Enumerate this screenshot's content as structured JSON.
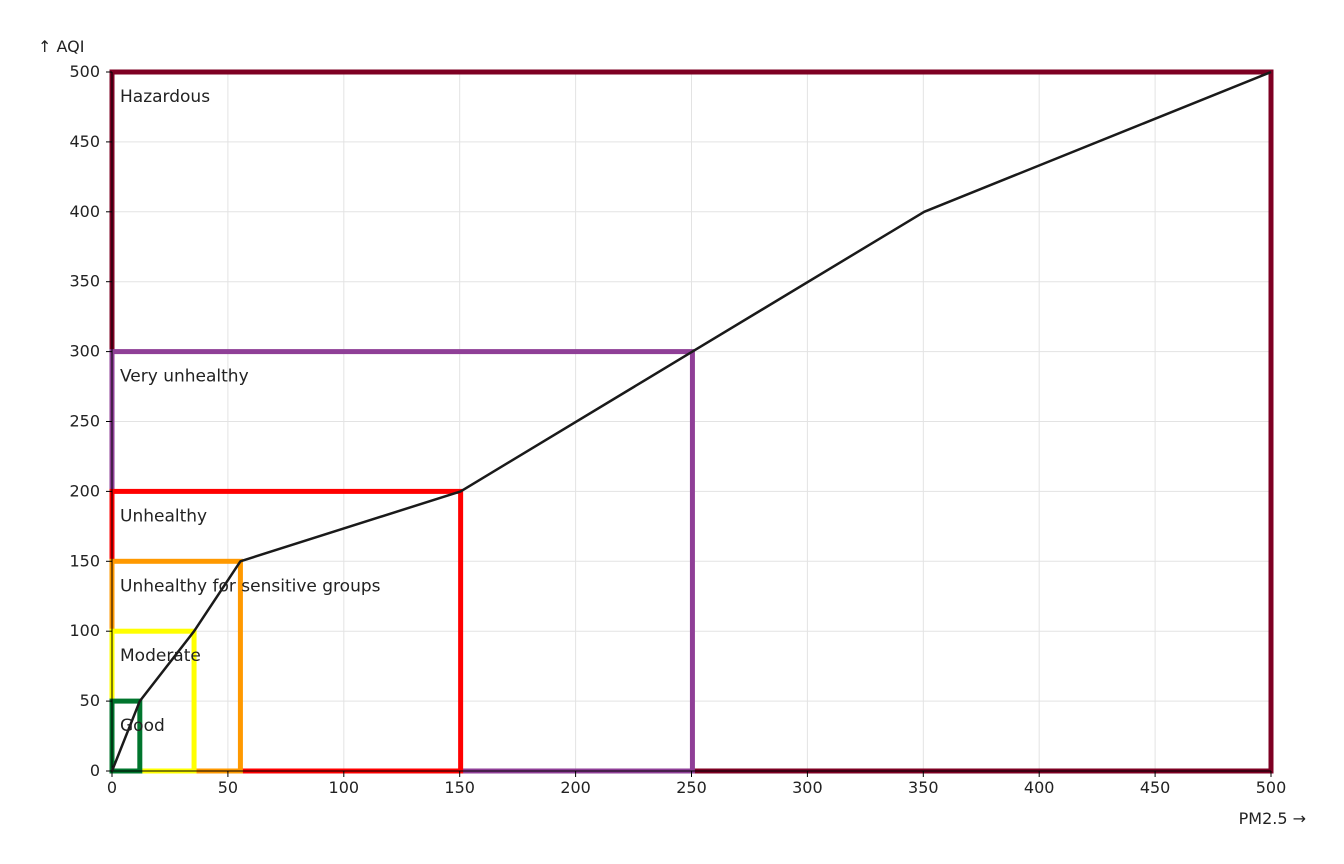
{
  "chart_data": {
    "type": "line",
    "title": "",
    "xlabel": "PM2.5 →",
    "ylabel": "↑ AQI",
    "xlim": [
      0,
      500
    ],
    "ylim": [
      0,
      500
    ],
    "x_ticks": [
      0,
      50,
      100,
      150,
      200,
      250,
      300,
      350,
      400,
      450,
      500
    ],
    "y_ticks": [
      0,
      50,
      100,
      150,
      200,
      250,
      300,
      350,
      400,
      450,
      500
    ],
    "grid": true,
    "categories": [
      {
        "name": "Hazardous",
        "pm_max": 500,
        "aqi_max": 500,
        "color": "#7e0023"
      },
      {
        "name": "Very unhealthy",
        "pm_max": 250.4,
        "aqi_max": 300,
        "color": "#8f3f97"
      },
      {
        "name": "Unhealthy",
        "pm_max": 150.4,
        "aqi_max": 200,
        "color": "#ff0000"
      },
      {
        "name": "Unhealthy for sensitive groups",
        "pm_max": 55.4,
        "aqi_max": 150,
        "color": "#ff9900"
      },
      {
        "name": "Moderate",
        "pm_max": 35.4,
        "aqi_max": 100,
        "color": "#ffff00"
      },
      {
        "name": "Good",
        "pm_max": 12,
        "aqi_max": 50,
        "color": "#00752d"
      }
    ],
    "series": [
      {
        "x": [
          0,
          12,
          35.4,
          55.4,
          150.4,
          250.4,
          350.4,
          500
        ],
        "y": [
          0,
          50,
          100,
          150,
          200,
          300,
          400,
          500
        ],
        "color": "#1a1a1a"
      }
    ]
  }
}
